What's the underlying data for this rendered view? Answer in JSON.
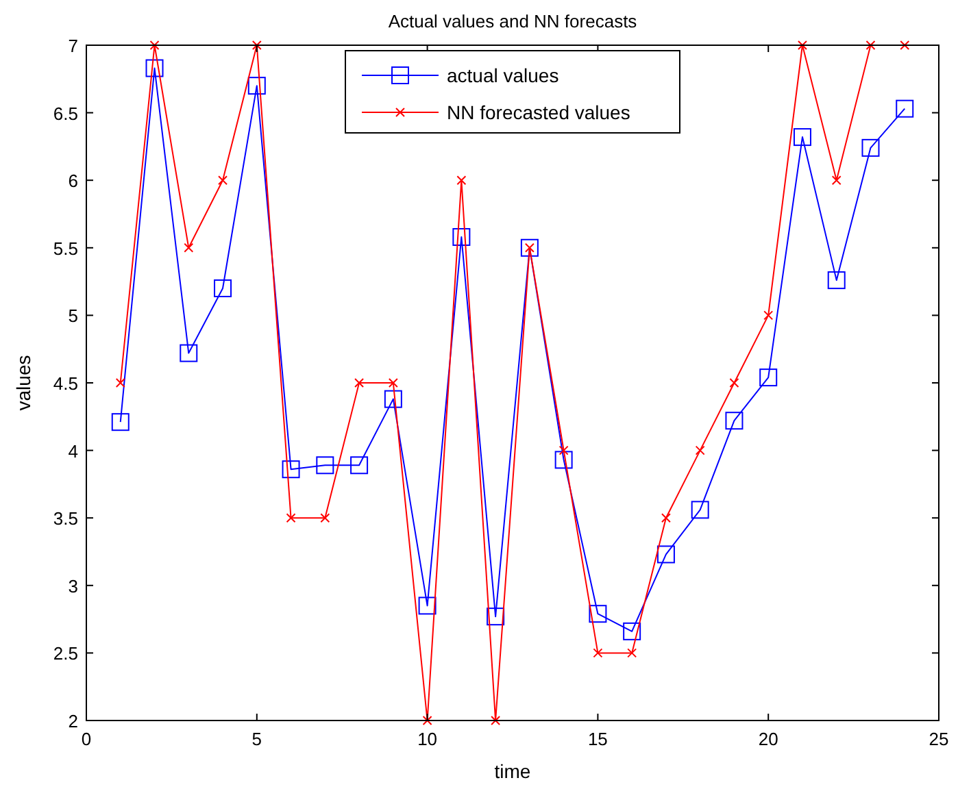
{
  "chart_data": {
    "type": "line",
    "title": "Actual values and NN forecasts",
    "xlabel": "time",
    "ylabel": "values",
    "x": [
      1,
      2,
      3,
      4,
      5,
      6,
      7,
      8,
      9,
      10,
      11,
      12,
      13,
      14,
      15,
      16,
      17,
      18,
      19,
      20,
      21,
      22,
      23,
      24
    ],
    "series": [
      {
        "name": "actual values",
        "color": "#0000ff",
        "marker": "square",
        "values": [
          4.21,
          6.83,
          4.72,
          5.2,
          6.7,
          3.86,
          3.89,
          3.89,
          4.38,
          2.85,
          5.58,
          2.77,
          5.5,
          3.93,
          2.79,
          2.66,
          3.23,
          3.56,
          4.22,
          4.54,
          6.32,
          5.26,
          6.24,
          6.53
        ]
      },
      {
        "name": "NN forecasted values",
        "color": "#ff0000",
        "marker": "cross",
        "values": [
          4.5,
          7,
          5.5,
          6,
          7,
          3.5,
          3.5,
          4.5,
          4.5,
          2,
          6,
          2,
          5.5,
          4,
          2.5,
          2.5,
          3.5,
          4,
          4.5,
          5,
          7,
          6,
          7,
          7
        ]
      }
    ],
    "xlim": [
      0,
      25
    ],
    "xticks": [
      0,
      5,
      10,
      15,
      20,
      25
    ],
    "ylim": [
      2,
      7
    ],
    "yticks": [
      2,
      2.5,
      3,
      3.5,
      4,
      4.5,
      5,
      5.5,
      6,
      6.5,
      7
    ],
    "grid": false,
    "legend": "top",
    "line_style": "solid"
  }
}
